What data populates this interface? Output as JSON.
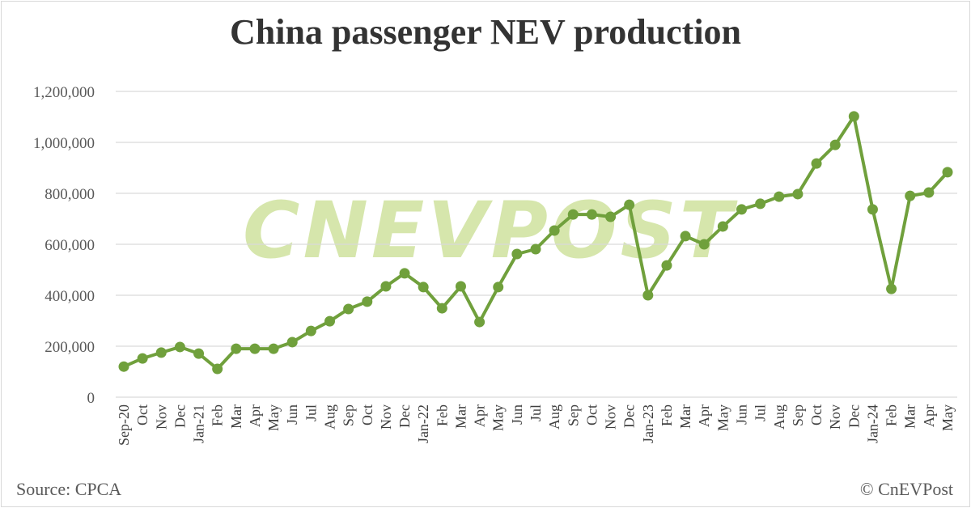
{
  "chart_data": {
    "type": "line",
    "title": "China passenger NEV production",
    "xlabel": "",
    "ylabel": "",
    "ylim": [
      0,
      1200000
    ],
    "yticks": [
      0,
      200000,
      400000,
      600000,
      800000,
      1000000,
      1200000
    ],
    "ytick_labels": [
      "0",
      "200,000",
      "400,000",
      "600,000",
      "800,000",
      "1,000,000",
      "1,200,000"
    ],
    "grid": true,
    "categories": [
      "Sep-20",
      "Oct",
      "Nov",
      "Dec",
      "Jan-21",
      "Feb",
      "Mar",
      "Apr",
      "May",
      "Jun",
      "Jul",
      "Aug",
      "Sep",
      "Oct",
      "Nov",
      "Dec",
      "Jan-22",
      "Feb",
      "Mar",
      "Apr",
      "May",
      "Jun",
      "Jul",
      "Aug",
      "Sep",
      "Oct",
      "Nov",
      "Dec",
      "Jan-23",
      "Feb",
      "Mar",
      "Apr",
      "May",
      "Jun",
      "Jul",
      "Aug",
      "Sep",
      "Oct",
      "Nov",
      "Dec",
      "Jan-24",
      "Feb",
      "Mar",
      "Apr",
      "May"
    ],
    "series": [
      {
        "name": "Passenger NEV production",
        "color": "#70a03c",
        "values": [
          120000,
          152000,
          175000,
          197000,
          171000,
          111000,
          190000,
          190000,
          190000,
          216000,
          260000,
          298000,
          346000,
          375000,
          435000,
          486000,
          432000,
          349000,
          435000,
          295000,
          432000,
          562000,
          581000,
          654000,
          717000,
          717000,
          708000,
          755000,
          400000,
          517000,
          632000,
          600000,
          670000,
          737000,
          759000,
          787000,
          797000,
          917000,
          990000,
          1102000,
          737000,
          425000,
          790000,
          803000,
          883000
        ]
      }
    ]
  },
  "source": "Source: CPCA",
  "copyright": "© CnEVPost",
  "watermark": "CNEVPOST"
}
